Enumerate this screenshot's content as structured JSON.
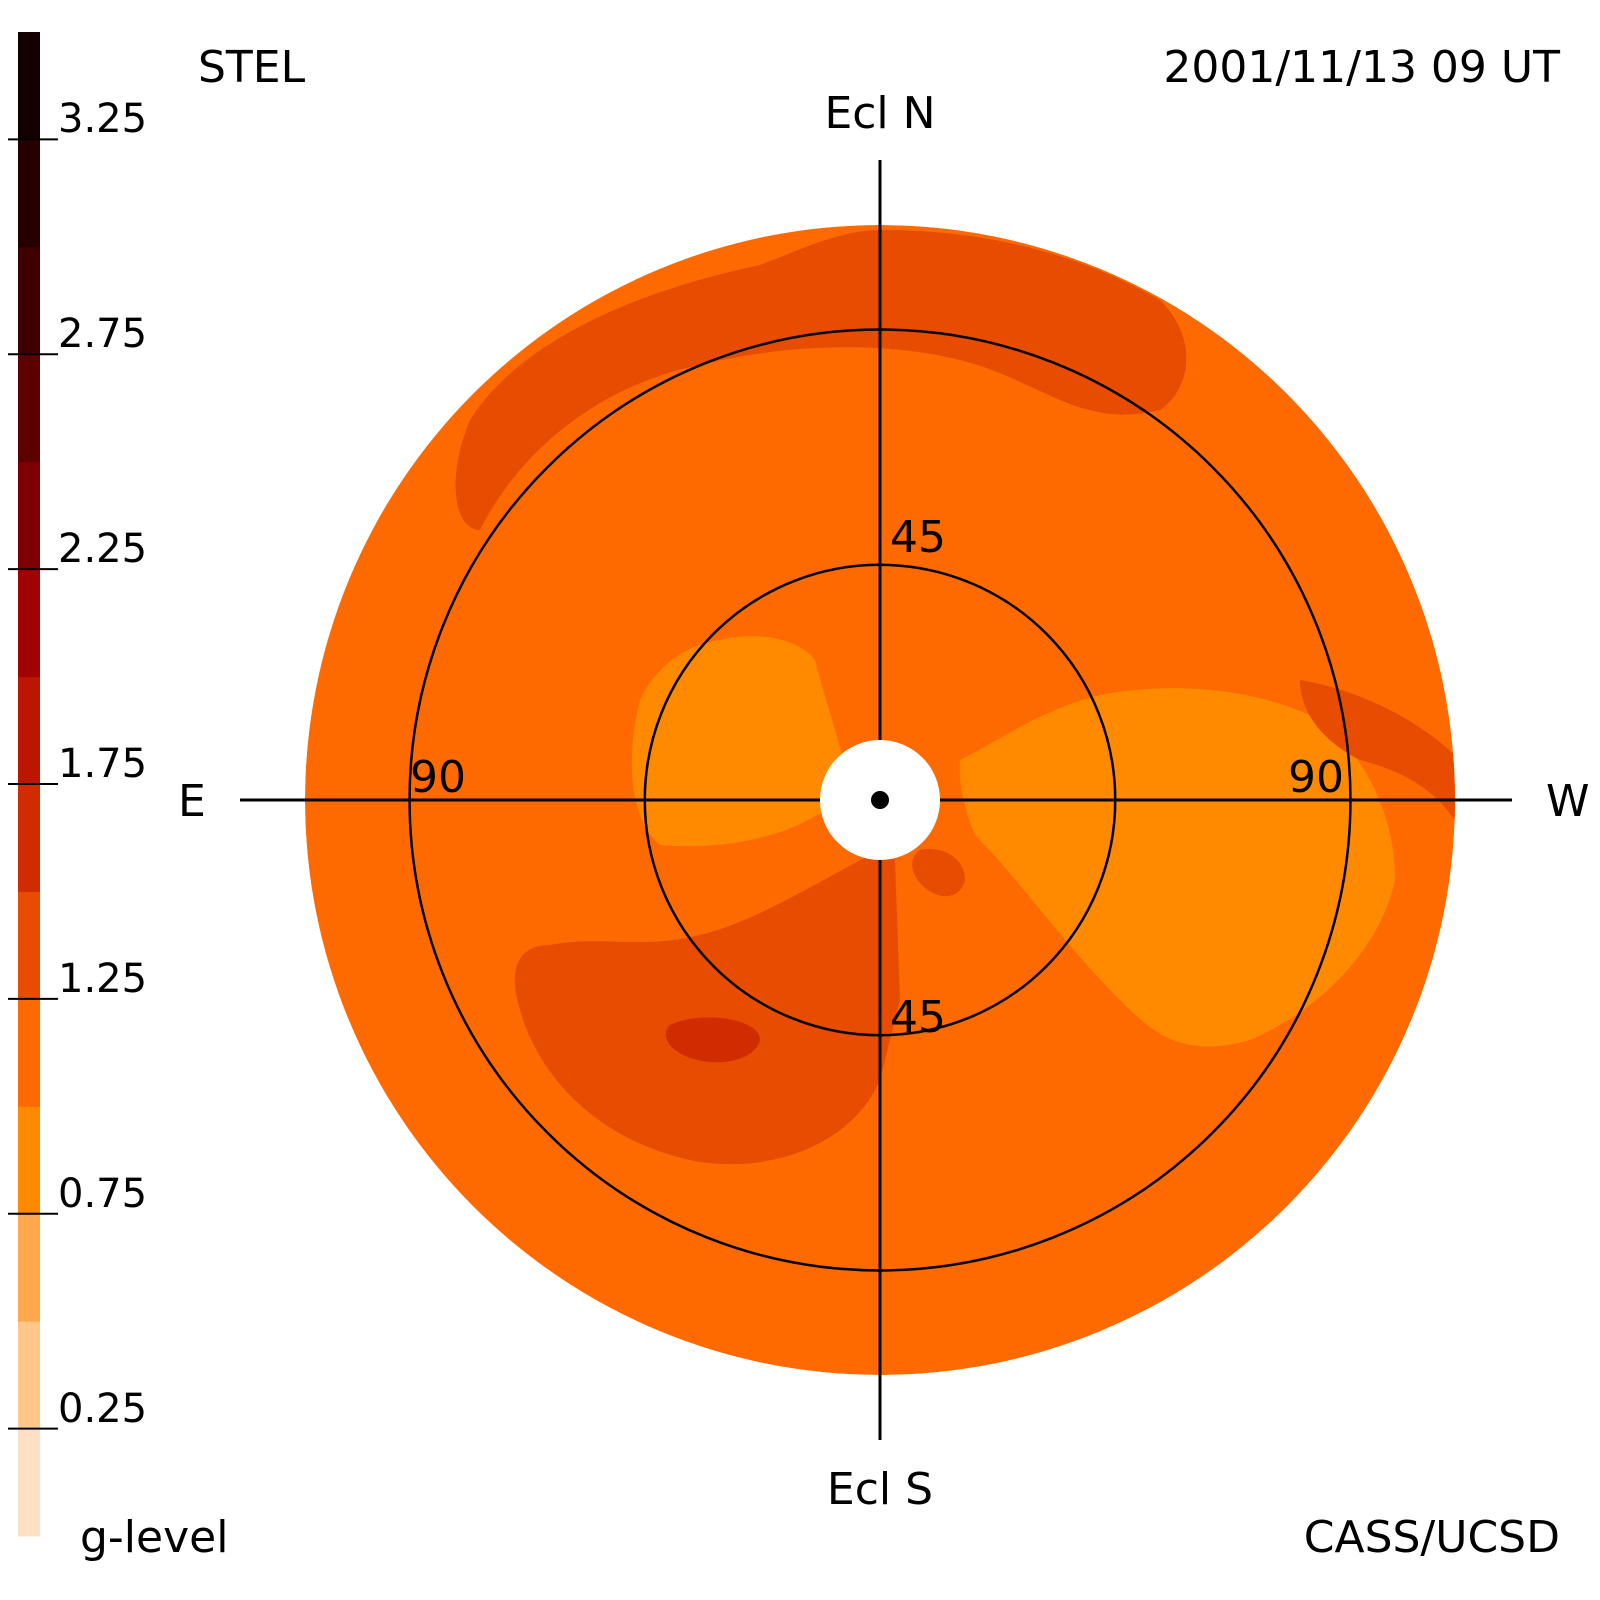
{
  "header": {
    "instrument": "STEL",
    "timestamp": "2001/11/13 09 UT",
    "credit": "CASS/UCSD"
  },
  "directions": {
    "north": "Ecl N",
    "south": "Ecl S",
    "east": "E",
    "west": "W"
  },
  "ring_labels": {
    "inner_top": "45",
    "inner_bottom": "45",
    "outer_left": "90",
    "outer_right": "90"
  },
  "colorbar": {
    "label": "g-level",
    "ticks": [
      "3.25",
      "2.75",
      "2.25",
      "1.75",
      "1.25",
      "0.75",
      "0.25"
    ],
    "tick_values": [
      3.25,
      2.75,
      2.25,
      1.75,
      1.25,
      0.75,
      0.25
    ],
    "colors": [
      "#ffe0c4",
      "#ffc78a",
      "#ffa84e",
      "#ff8a00",
      "#ff6a00",
      "#e84c00",
      "#d02c00",
      "#bc1500",
      "#a00300",
      "#7e0000",
      "#5c0000",
      "#3e0000",
      "#260000",
      "#140000"
    ]
  },
  "chart_data": {
    "type": "heatmap",
    "projection": "fisheye sky map centered on the Sun",
    "color_scale": "g-level",
    "scale_range": [
      0,
      3.5
    ],
    "background_level": 1.1,
    "rings_deg": [
      45,
      90
    ],
    "max_elongation_deg": 110,
    "regions": [
      {
        "name": "north polar enhancement",
        "level": 1.35
      },
      {
        "name": "north-east enhancement",
        "level": 1.35
      },
      {
        "name": "south-east enhancement",
        "level": 1.35
      },
      {
        "name": "south-east core",
        "level": 1.6
      },
      {
        "name": "west depletion",
        "level": 0.9
      },
      {
        "name": "north-east inner depletion",
        "level": 0.9
      },
      {
        "name": "south-west inner enhancement",
        "level": 1.35
      }
    ]
  }
}
